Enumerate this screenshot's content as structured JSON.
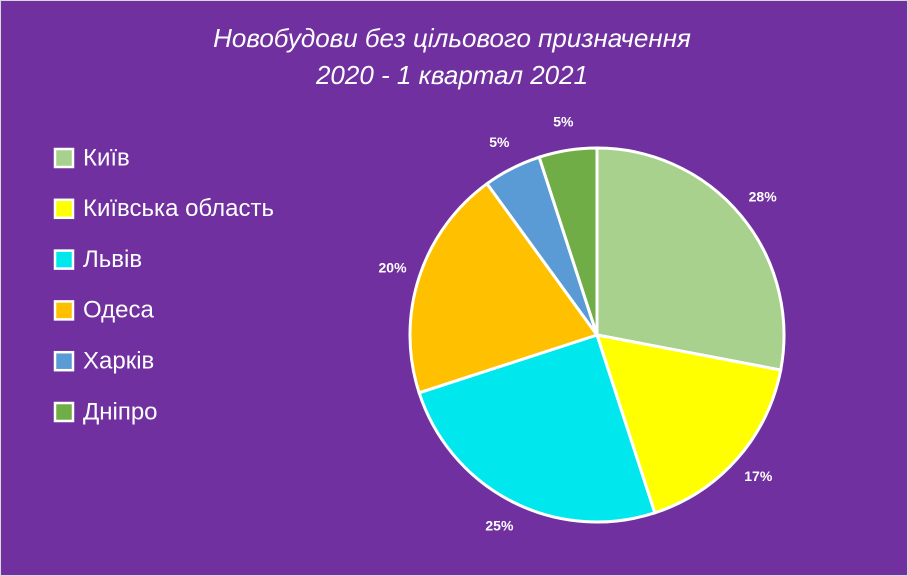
{
  "chart_data": {
    "type": "pie",
    "title_lines": [
      "Новобудови без цільового призначення",
      "2020 - 1 квартал 2021"
    ],
    "categories": [
      "Київ",
      "Київська область",
      "Львів",
      "Одеса",
      "Харків",
      "Дніпро"
    ],
    "values": [
      28,
      17,
      25,
      20,
      5,
      5
    ],
    "value_labels": [
      "28%",
      "17%",
      "25%",
      "20%",
      "5%",
      "5%"
    ],
    "colors": [
      "#a9d18e",
      "#ffff00",
      "#00e8ee",
      "#ffc000",
      "#5b9bd5",
      "#70ad47"
    ],
    "legend": "left"
  }
}
